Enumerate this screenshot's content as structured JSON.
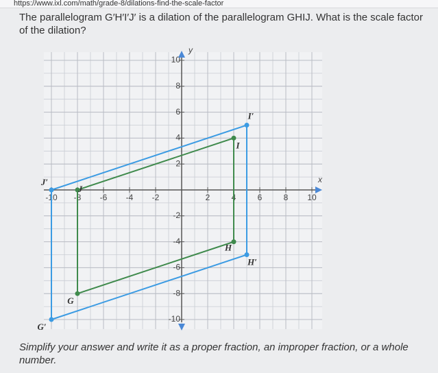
{
  "url": "https://www.ixl.com/math/grade-8/dilations-find-the-scale-factor",
  "question": "The parallelogram G′H′I′J′ is a dilation of the parallelogram GHIJ. What is the scale factor of the dilation?",
  "graph": {
    "x_label": "x",
    "y_label": "y",
    "xlim": [
      -10,
      10
    ],
    "ylim": [
      -10,
      10
    ],
    "xticks": [
      -10,
      -8,
      -6,
      -4,
      -2,
      2,
      4,
      6,
      8,
      10
    ],
    "yticks": [
      -10,
      -8,
      -6,
      -4,
      -2,
      2,
      4,
      6,
      8,
      10
    ],
    "shapes": [
      {
        "color": "#3f8a4c",
        "points": [
          {
            "label": "G",
            "x": -8,
            "y": -8
          },
          {
            "label": "H",
            "x": 4,
            "y": -4
          },
          {
            "label": "I",
            "x": 4,
            "y": 4
          },
          {
            "label": "J",
            "x": -8,
            "y": 0
          }
        ]
      },
      {
        "color": "#3b9be3",
        "points": [
          {
            "label": "G′",
            "x": -10,
            "y": -10
          },
          {
            "label": "H′",
            "x": 5,
            "y": -5
          },
          {
            "label": "I′",
            "x": 5,
            "y": 5
          },
          {
            "label": "J′",
            "x": -10,
            "y": 0
          }
        ]
      }
    ]
  },
  "instruction": "Simplify your answer and write it as a proper fraction, an improper fraction, or a whole number."
}
